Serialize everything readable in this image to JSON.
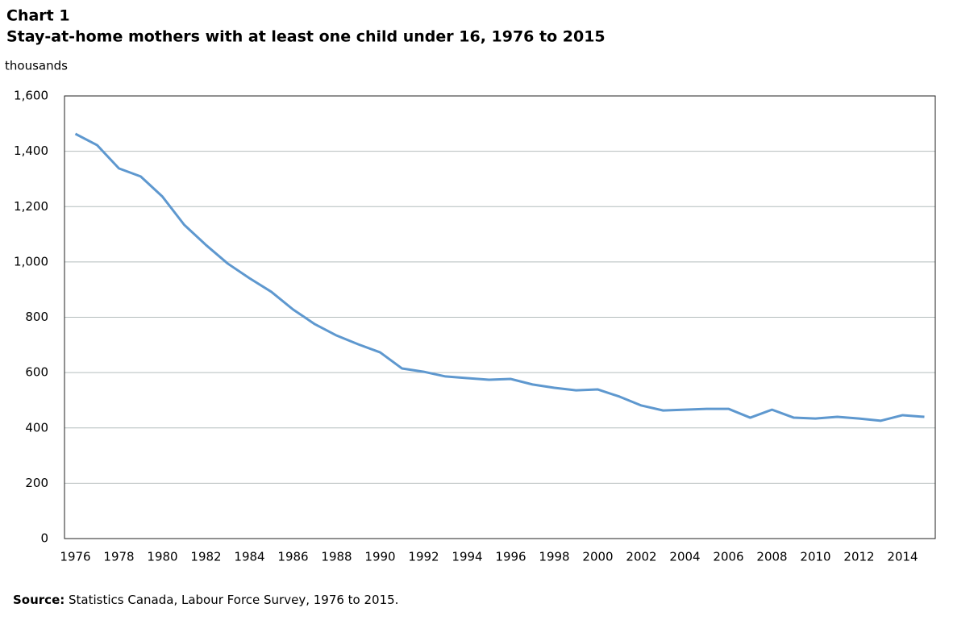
{
  "chart_data": {
    "type": "line",
    "title": "Chart 1",
    "subtitle": "Stay-at-home mothers with at least one child under 16, 1976 to 2015",
    "y_label": "thousands",
    "source_label": "Source:",
    "source": "Statistics Canada, Labour Force Survey, 1976 to 2015.",
    "categories": [
      "1976",
      null,
      "1978",
      null,
      "1980",
      null,
      "1982",
      null,
      "1984",
      null,
      "1986",
      null,
      "1988",
      null,
      "1990",
      null,
      "1992",
      null,
      "1994",
      null,
      "1996",
      null,
      "1998",
      null,
      "2000",
      null,
      "2002",
      null,
      "2004",
      null,
      "2006",
      null,
      "2008",
      null,
      "2010",
      null,
      "2012",
      null,
      "2014",
      null
    ],
    "series": [
      {
        "color": "#5e98cf",
        "values": [
          1463,
          1422,
          1338,
          1309,
          1236,
          1134,
          1061,
          994,
          941,
          892,
          828,
          775,
          734,
          702,
          673,
          615,
          603,
          586,
          580,
          574,
          577,
          557,
          545,
          536,
          539,
          513,
          481,
          463,
          466,
          469,
          469,
          437,
          466,
          437,
          434,
          440,
          434,
          426,
          446,
          440
        ]
      }
    ],
    "ylim": [
      0,
      1600
    ],
    "yticks": [
      0,
      200,
      400,
      600,
      800,
      {
        "value": 1000,
        "label": "1,000"
      },
      {
        "value": 1200,
        "label": "1,200"
      },
      {
        "value": 1400,
        "label": "1,400"
      },
      {
        "value": 1600,
        "label": "1,600"
      }
    ],
    "grid": true
  }
}
